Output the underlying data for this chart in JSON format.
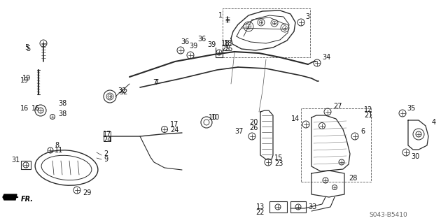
{
  "bg_color": "#ffffff",
  "diagram_code": "S043-B5410",
  "line_color": "#2a2a2a",
  "text_color": "#111111",
  "fontsize_label": 7,
  "fontsize_code": 6.5
}
